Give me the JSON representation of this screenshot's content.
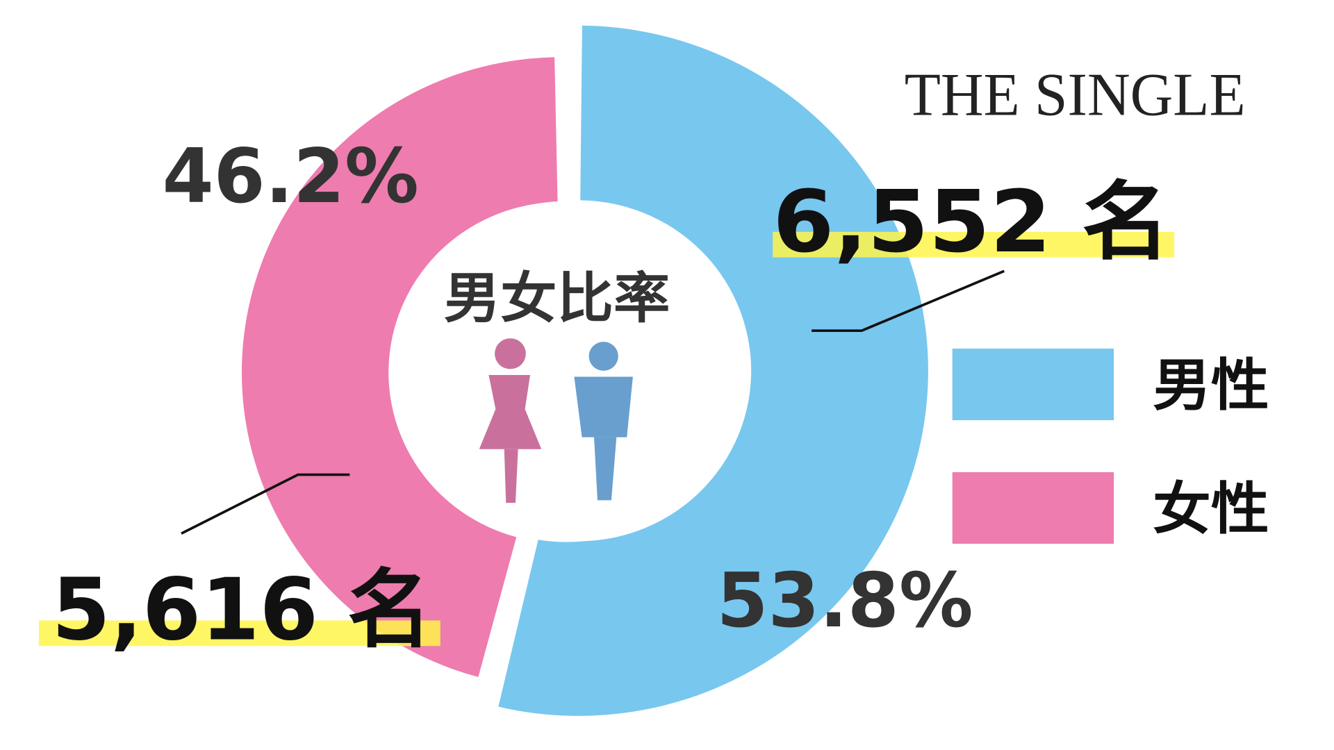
{
  "chart_data": {
    "type": "pie",
    "title": "男女比率",
    "series": [
      {
        "name": "男性",
        "value": 6552,
        "percent": "53.8%",
        "count_label": "6,552 名",
        "color": "#78C7EF"
      },
      {
        "name": "女性",
        "value": 5616,
        "percent": "46.2%",
        "count_label": "5,616 名",
        "color": "#EE7CAE"
      }
    ],
    "legend": {
      "placement": "right",
      "items": [
        "男性",
        "女性"
      ]
    },
    "highlight_color": "#FFF44A",
    "icons": {
      "female": "female-figure-icon",
      "male": "male-figure-icon",
      "female_color": "#C9719C",
      "male_color": "#689FCE"
    }
  },
  "brand": "THE SINGLE"
}
